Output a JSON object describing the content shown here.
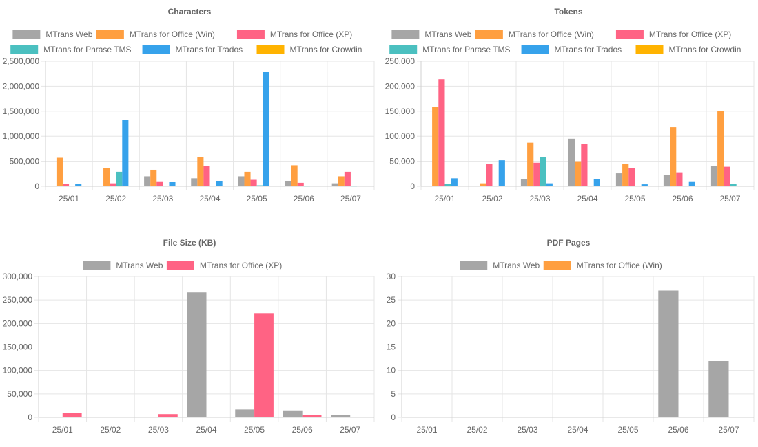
{
  "chart_data": [
    {
      "id": "characters",
      "type": "bar",
      "title": "Characters",
      "categories": [
        "25/01",
        "25/02",
        "25/03",
        "25/04",
        "25/05",
        "25/06",
        "25/07"
      ],
      "ylim": [
        0,
        2500000
      ],
      "yticks": [
        0,
        500000,
        1000000,
        1500000,
        2000000,
        2500000
      ],
      "ytick_labels": [
        "0",
        "500,000",
        "1,000,000",
        "1,500,000",
        "2,000,000",
        "2,500,000"
      ],
      "grid": true,
      "legend_position": "top",
      "series": [
        {
          "name": "MTrans Web",
          "color": "#A6A6A6",
          "values": [
            0,
            0,
            200000,
            160000,
            200000,
            110000,
            60000
          ]
        },
        {
          "name": "MTrans for Office (Win)",
          "color": "#FF9F40",
          "values": [
            570000,
            360000,
            330000,
            580000,
            290000,
            420000,
            200000
          ]
        },
        {
          "name": "MTrans for Office (XP)",
          "color": "#FF6384",
          "values": [
            50000,
            60000,
            100000,
            410000,
            130000,
            70000,
            290000
          ]
        },
        {
          "name": "MTrans for Phrase TMS",
          "color": "#4BC0C0",
          "values": [
            0,
            290000,
            0,
            0,
            20000,
            5000,
            5000
          ]
        },
        {
          "name": "MTrans for Trados",
          "color": "#36A2EB",
          "values": [
            50000,
            1330000,
            90000,
            110000,
            2290000,
            0,
            0
          ]
        },
        {
          "name": "MTrans for Crowdin",
          "color": "#FFB300",
          "values": [
            0,
            0,
            0,
            0,
            0,
            0,
            0
          ]
        }
      ]
    },
    {
      "id": "tokens",
      "type": "bar",
      "title": "Tokens",
      "categories": [
        "25/01",
        "25/02",
        "25/03",
        "25/04",
        "25/05",
        "25/06",
        "25/07"
      ],
      "ylim": [
        0,
        250000
      ],
      "yticks": [
        0,
        50000,
        100000,
        150000,
        200000,
        250000
      ],
      "ytick_labels": [
        "0",
        "50,000",
        "100,000",
        "150,000",
        "200,000",
        "250,000"
      ],
      "grid": true,
      "legend_position": "top",
      "series": [
        {
          "name": "MTrans Web",
          "color": "#A6A6A6",
          "values": [
            0,
            0,
            15000,
            95000,
            26000,
            23000,
            41000
          ]
        },
        {
          "name": "MTrans for Office (Win)",
          "color": "#FF9F40",
          "values": [
            158000,
            6000,
            87000,
            50000,
            45000,
            118000,
            151000
          ]
        },
        {
          "name": "MTrans for Office (XP)",
          "color": "#FF6384",
          "values": [
            214000,
            44000,
            47000,
            84000,
            36000,
            28000,
            39000
          ]
        },
        {
          "name": "MTrans for Phrase TMS",
          "color": "#4BC0C0",
          "values": [
            5000,
            0,
            58000,
            0,
            0,
            0,
            5000
          ]
        },
        {
          "name": "MTrans for Trados",
          "color": "#36A2EB",
          "values": [
            16000,
            52000,
            6000,
            15000,
            4000,
            10000,
            1000
          ]
        },
        {
          "name": "MTrans for Crowdin",
          "color": "#FFB300",
          "values": [
            0,
            0,
            0,
            0,
            0,
            0,
            0
          ]
        }
      ]
    },
    {
      "id": "filesize",
      "type": "bar",
      "title": "File Size (KB)",
      "categories": [
        "25/01",
        "25/02",
        "25/03",
        "25/04",
        "25/05",
        "25/06",
        "25/07"
      ],
      "ylim": [
        0,
        300000
      ],
      "yticks": [
        0,
        50000,
        100000,
        150000,
        200000,
        250000,
        300000
      ],
      "ytick_labels": [
        "0",
        "50,000",
        "100,000",
        "150,000",
        "200,000",
        "250,000",
        "300,000"
      ],
      "grid": true,
      "legend_position": "top",
      "series": [
        {
          "name": "MTrans Web",
          "color": "#A6A6A6",
          "values": [
            0,
            1000,
            0,
            266000,
            17000,
            15000,
            5000
          ]
        },
        {
          "name": "MTrans for Office (XP)",
          "color": "#FF6384",
          "values": [
            10000,
            1000,
            7000,
            1000,
            222000,
            5000,
            1000
          ]
        }
      ]
    },
    {
      "id": "pdfpages",
      "type": "bar",
      "title": "PDF Pages",
      "categories": [
        "25/01",
        "25/02",
        "25/03",
        "25/04",
        "25/05",
        "25/06",
        "25/07"
      ],
      "ylim": [
        0,
        30
      ],
      "yticks": [
        0,
        5,
        10,
        15,
        20,
        25,
        30
      ],
      "ytick_labels": [
        "0",
        "5",
        "10",
        "15",
        "20",
        "25",
        "30"
      ],
      "grid": true,
      "legend_position": "top",
      "series": [
        {
          "name": "MTrans Web",
          "color": "#A6A6A6",
          "values": [
            0,
            0,
            0,
            0,
            0,
            27,
            12
          ]
        },
        {
          "name": "MTrans for Office (Win)",
          "color": "#FF9F40",
          "values": [
            0,
            0,
            0,
            0,
            0,
            0,
            0
          ]
        }
      ]
    }
  ]
}
